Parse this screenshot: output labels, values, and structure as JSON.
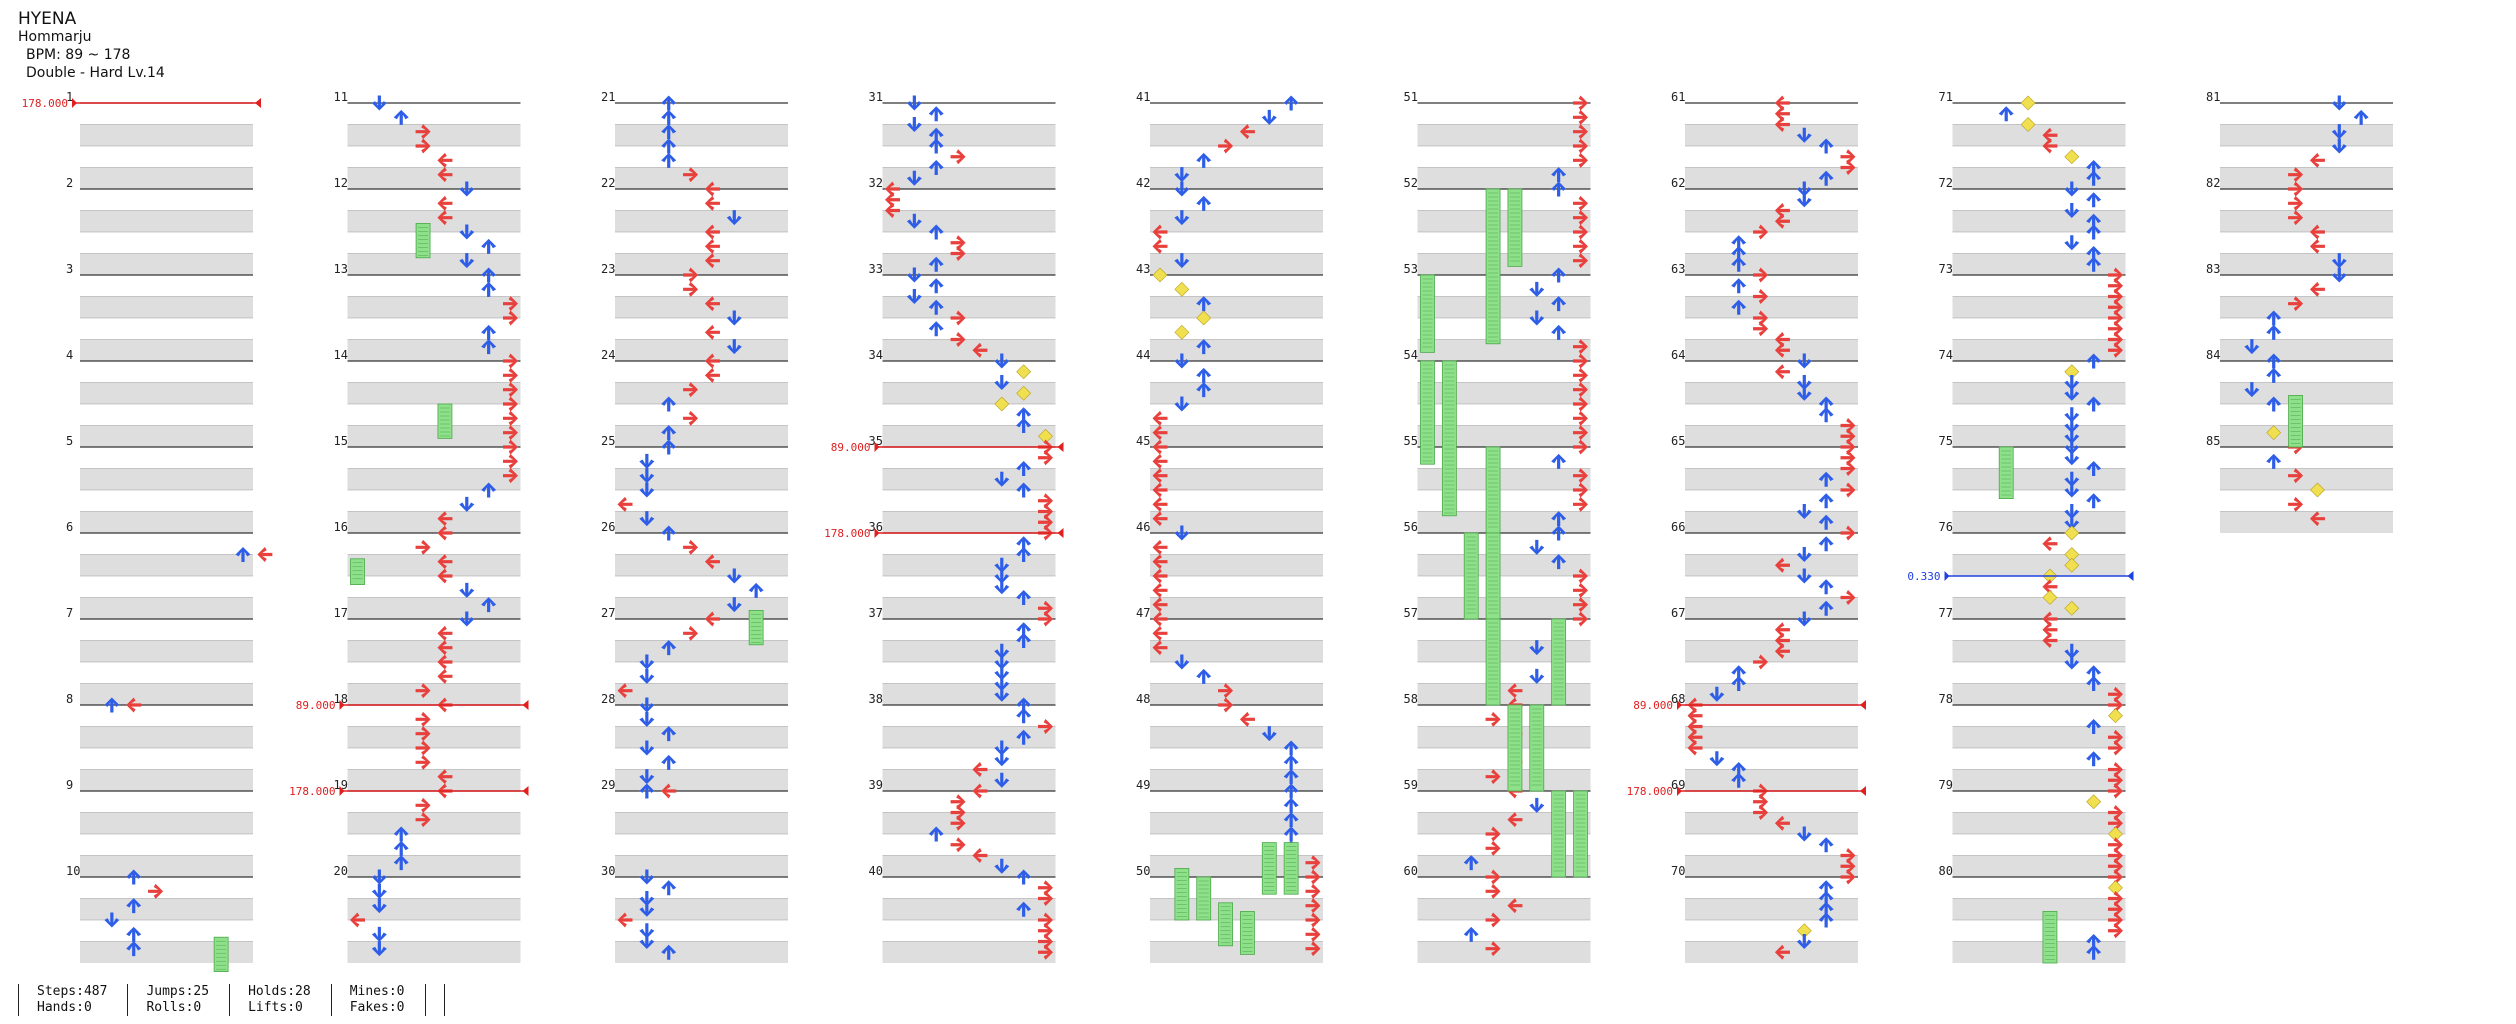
{
  "song": {
    "title": "HYENA",
    "artist": "Hommarju",
    "bpm": "BPM: 89 ~ 178",
    "difficulty": "Double - Hard Lv.14"
  },
  "colors": {
    "left": "#e8403c",
    "down": "#2e5ee8",
    "up": "#2e5ee8",
    "right": "#e8403c",
    "center": "#f0e050",
    "hold": "#8ee08a",
    "bpm_marker": "#e02020",
    "speed_marker": "#2040e0"
  },
  "chart": {
    "measures": 85,
    "columns": 9,
    "measures_per_column": 10,
    "markers": [
      {
        "measure": 1,
        "label": "178.000",
        "kind": "bpm"
      },
      {
        "measure": 18,
        "label": "89.000",
        "kind": "bpm"
      },
      {
        "measure": 19,
        "label": "178.000",
        "kind": "bpm"
      },
      {
        "measure": 35,
        "label": "89.000",
        "kind": "bpm"
      },
      {
        "measure": 36,
        "label": "178.000",
        "kind": "bpm"
      },
      {
        "measure": 68,
        "label": "89.000",
        "kind": "bpm"
      },
      {
        "measure": 69,
        "label": "178.000",
        "kind": "bpm"
      },
      {
        "measure": 76.5,
        "label": "0.330",
        "kind": "speed"
      }
    ]
  },
  "stats": {
    "steps": "Steps:487",
    "hands": "Hands:0",
    "jumps": "Jumps:25",
    "rolls": "Rolls:0",
    "holds": "Holds:28",
    "lifts": "Lifts:0",
    "mines": "Mines:0",
    "fakes": "Fakes:0"
  }
}
